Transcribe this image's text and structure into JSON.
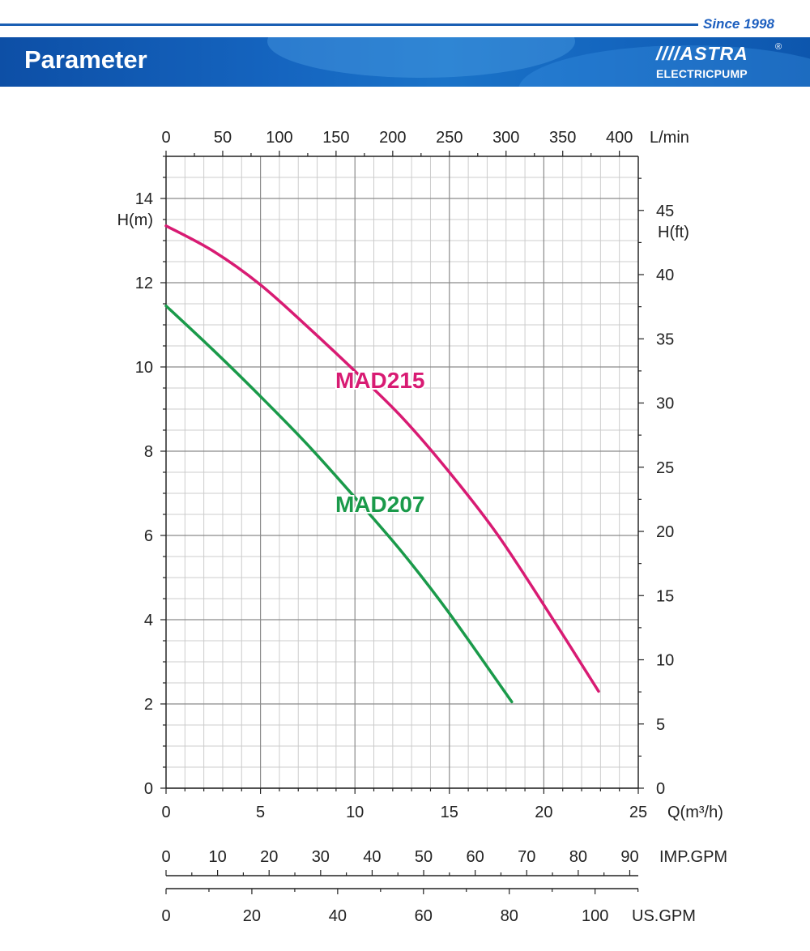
{
  "header": {
    "since": "Since 1998",
    "title": "Parameter",
    "logo_word": "////ASTRA",
    "logo_registered": "®",
    "logo_sub": "ELECTRICPUMP"
  },
  "colors": {
    "header_blue": "#1565c0",
    "mad215": "#d81b73",
    "mad207": "#1a9a4a",
    "grid_major": "#8a8a8a",
    "grid_minor": "#cccccc"
  },
  "chart_data": {
    "type": "line",
    "xlabel": "Q(m³/h)",
    "ylabel": "H(m)",
    "xlim": [
      0,
      25
    ],
    "ylim": [
      0,
      15
    ],
    "x_ticks": [
      0,
      5,
      10,
      15,
      20,
      25
    ],
    "y_ticks": [
      0,
      2,
      4,
      6,
      8,
      10,
      12,
      14
    ],
    "grid": true,
    "top_axis": {
      "label": "L/min",
      "ticks": [
        0,
        50,
        100,
        150,
        200,
        250,
        300,
        350,
        400
      ]
    },
    "right_axis": {
      "label": "H(ft)",
      "ticks": [
        0,
        5,
        10,
        15,
        20,
        25,
        30,
        35,
        40,
        45
      ]
    },
    "imp_gpm_axis": {
      "label": "IMP.GPM",
      "ticks": [
        0,
        10,
        20,
        30,
        40,
        50,
        60,
        70,
        80,
        90
      ]
    },
    "us_gpm_axis": {
      "label": "US.GPM",
      "ticks": [
        0,
        20,
        40,
        60,
        80,
        100
      ]
    },
    "series": [
      {
        "name": "MAD215",
        "color": "#d81b73",
        "x": [
          0,
          2.5,
          5,
          7.5,
          10,
          12.5,
          15,
          17.5,
          20,
          22.9
        ],
        "y": [
          13.35,
          12.75,
          11.95,
          10.95,
          9.9,
          8.8,
          7.5,
          6.05,
          4.35,
          2.3
        ]
      },
      {
        "name": "MAD207",
        "color": "#1a9a4a",
        "x": [
          0,
          2.5,
          5,
          7.5,
          10,
          12.5,
          15,
          18.3
        ],
        "y": [
          11.45,
          10.4,
          9.3,
          8.15,
          6.9,
          5.6,
          4.15,
          2.05
        ]
      }
    ]
  }
}
